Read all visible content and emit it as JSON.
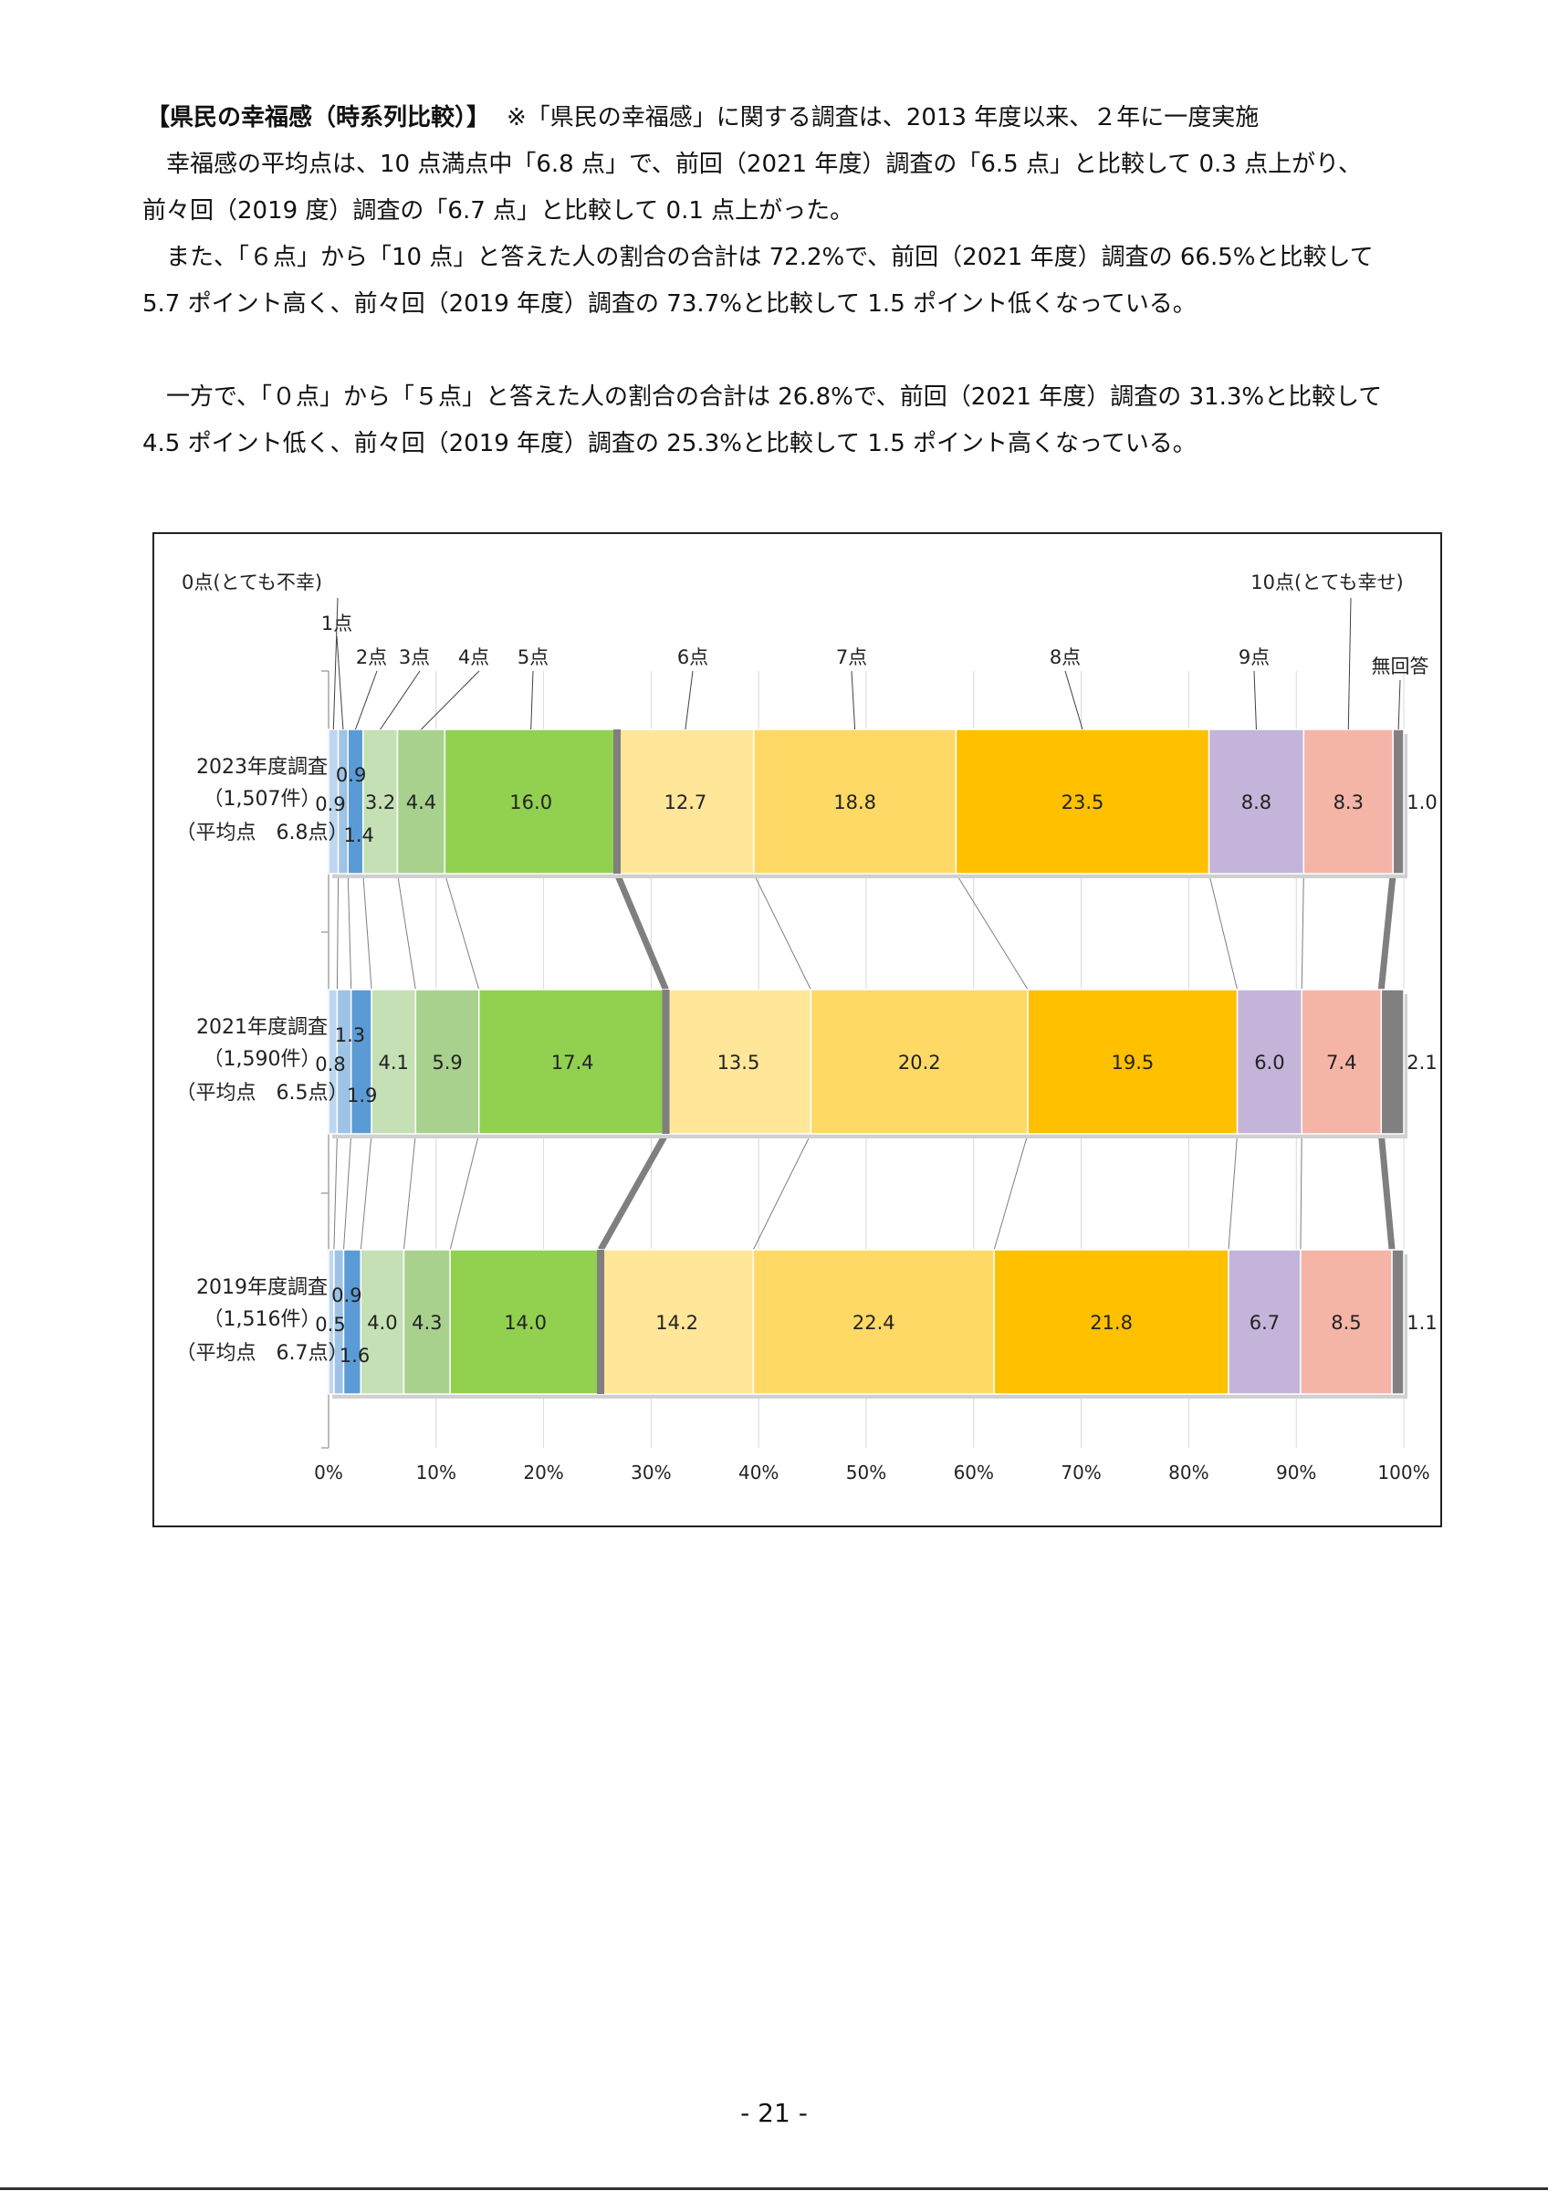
{
  "heading": {
    "title": "【県民の幸福感（時系列比較）】",
    "note": "※「県民の幸福感」に関する調査は、2013 年度以来、２年に一度実施"
  },
  "paragraphs": [
    "　幸福感の平均点は、10 点満点中「6.8 点」で、前回（2021 年度）調査の「6.5 点」と比較して 0.3 点上がり、前々回（2019 度）調査の「6.7 点」と比較して 0.1 点上がった。",
    "　また、「６点」から「10 点」と答えた人の割合の合計は 72.2%で、前回（2021 年度）調査の 66.5%と比較して 5.7 ポイント高く、前々回（2019 年度）調査の 73.7%と比較して 1.5 ポイント低くなっている。",
    "　一方で、「０点」から「５点」と答えた人の割合の合計は 26.8%で、前回（2021 年度）調査の 31.3%と比較して 4.5 ポイント低く、前々回（2019 年度）調査の 25.3%と比較して 1.5 ポイント高くなっている。"
  ],
  "chart_data": {
    "type": "bar",
    "orientation": "horizontal-stacked-100",
    "categories": [
      "0点(とても不幸)",
      "1点",
      "2点",
      "3点",
      "4点",
      "5点",
      "6点",
      "7点",
      "8点",
      "9点",
      "10点(とても幸せ)",
      "無回答"
    ],
    "colors": [
      "#bdd7ee",
      "#9dc3e6",
      "#5b9bd5",
      "#c5e0b4",
      "#a9d18e",
      "#92d050",
      "#ffe699",
      "#ffd966",
      "#ffc000",
      "#c5b4d9",
      "#f4b5a7",
      "#808080"
    ],
    "divider_color": "#7f7f7f",
    "rows": [
      {
        "label": "2023年度調査",
        "count": "（1,507件）",
        "mean": "（平均点　6.8点）",
        "values": [
          0.9,
          0.9,
          1.4,
          3.2,
          4.4,
          16.0,
          12.7,
          18.8,
          23.5,
          8.8,
          8.3,
          1.0
        ],
        "value_labels": [
          "0.9",
          "0.9",
          "1.4",
          "3.2",
          "4.4",
          "16.0",
          "12.7",
          "18.8",
          "23.5",
          "8.8",
          "8.3",
          "1.0"
        ]
      },
      {
        "label": "2021年度調査",
        "count": "（1,590件）",
        "mean": "（平均点　6.5点）",
        "values": [
          0.8,
          1.3,
          1.9,
          4.1,
          5.9,
          17.4,
          13.5,
          20.2,
          19.5,
          6.0,
          7.4,
          2.1
        ],
        "value_labels": [
          "0.8",
          "1.3",
          "1.9",
          "4.1",
          "5.9",
          "17.4",
          "13.5",
          "20.2",
          "19.5",
          "6.0",
          "7.4",
          "2.1"
        ]
      },
      {
        "label": "2019年度調査",
        "count": "（1,516件）",
        "mean": "（平均点　6.7点）",
        "values": [
          0.5,
          0.9,
          1.6,
          4.0,
          4.3,
          14.0,
          14.2,
          22.4,
          21.8,
          6.7,
          8.5,
          1.1
        ],
        "value_labels": [
          "0.5",
          "0.9",
          "1.6",
          "4.0",
          "4.3",
          "14.0",
          "14.2",
          "22.4",
          "21.8",
          "6.7",
          "8.5",
          "1.1"
        ]
      }
    ],
    "x_ticks": [
      "0%",
      "10%",
      "20%",
      "30%",
      "40%",
      "50%",
      "60%",
      "70%",
      "80%",
      "90%",
      "100%"
    ],
    "xlim": [
      0,
      100
    ],
    "grid": true
  },
  "page_number": "- 21 -"
}
